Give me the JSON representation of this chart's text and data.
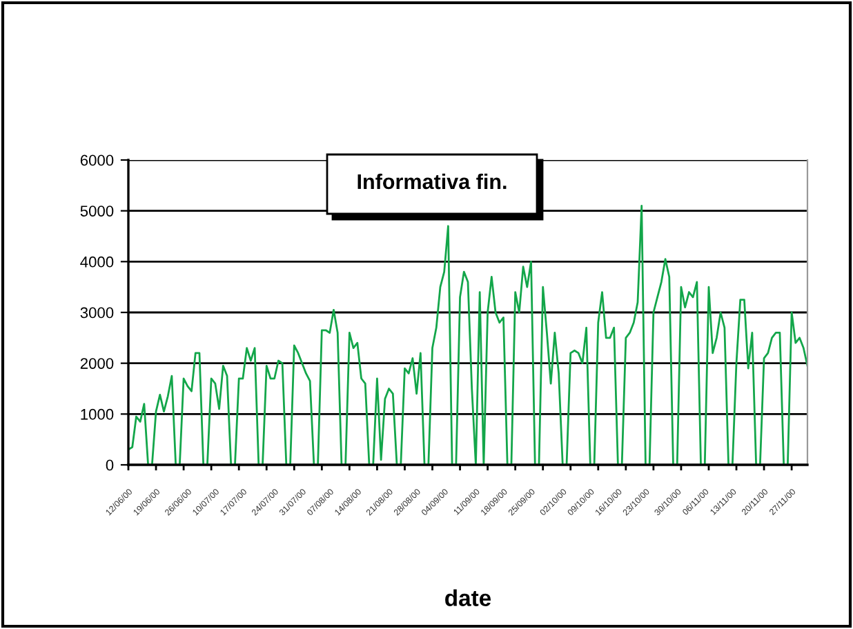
{
  "chart_data": {
    "type": "line",
    "title": "Informativa fin.",
    "xlabel": "date",
    "categories": [
      "12/06/00",
      null,
      null,
      null,
      null,
      null,
      null,
      "19/06/00",
      null,
      null,
      null,
      null,
      null,
      null,
      null,
      "26/06/00",
      null,
      null,
      null,
      null,
      null,
      null,
      "10/07/00",
      null,
      null,
      null,
      null,
      null,
      null,
      "17/07/00",
      null,
      null,
      null,
      null,
      null,
      null,
      null,
      "24/07/00",
      null,
      null,
      null,
      null,
      null,
      null,
      "31/07/00",
      null,
      null,
      null,
      null,
      null,
      null,
      "07/08/00",
      null,
      null,
      null,
      null,
      null,
      null,
      "14/08/00",
      null,
      null,
      null,
      null,
      null,
      null,
      null,
      "21/08/00",
      null,
      null,
      null,
      null,
      null,
      null,
      "28/08/00",
      null,
      null,
      null,
      null,
      null,
      null,
      "04/09/00",
      null,
      null,
      null,
      null,
      null,
      null,
      null,
      "11/09/00",
      null,
      null,
      null,
      null,
      null,
      null,
      "18/09/00",
      null,
      null,
      null,
      null,
      null,
      null,
      "25/09/00",
      null,
      null,
      null,
      null,
      null,
      null,
      null,
      "02/10/00",
      null,
      null,
      null,
      null,
      null,
      null,
      "09/10/00",
      null,
      null,
      null,
      null,
      null,
      null,
      "16/10/00",
      null,
      null,
      null,
      null,
      null,
      null,
      "23/10/00",
      null,
      null,
      null,
      null,
      null,
      null,
      null,
      "30/10/00",
      null,
      null,
      null,
      null,
      null,
      null,
      "06/11/00",
      null,
      null,
      null,
      null,
      null,
      null,
      "13/11/00",
      null,
      null,
      null,
      null,
      null,
      null,
      null,
      "20/11/00",
      null,
      null,
      null,
      null,
      null,
      null,
      "27/11/00",
      null,
      null,
      null,
      null
    ],
    "values": [
      300,
      350,
      950,
      850,
      1200,
      0,
      0,
      1050,
      1380,
      1050,
      1350,
      1750,
      0,
      0,
      1700,
      1550,
      1450,
      2200,
      2200,
      0,
      0,
      1700,
      1600,
      1100,
      1950,
      1750,
      0,
      0,
      1700,
      1700,
      2300,
      2050,
      2300,
      0,
      0,
      1950,
      1700,
      1700,
      2050,
      2000,
      0,
      0,
      2350,
      2200,
      2000,
      1800,
      1650,
      0,
      0,
      2650,
      2650,
      2600,
      3050,
      2600,
      0,
      0,
      2600,
      2300,
      2400,
      1700,
      1600,
      0,
      0,
      1700,
      100,
      1300,
      1500,
      1400,
      0,
      0,
      1900,
      1800,
      2100,
      1400,
      2200,
      0,
      0,
      2300,
      2700,
      3500,
      3800,
      4700,
      0,
      0,
      3300,
      3800,
      3600,
      1500,
      0,
      3400,
      0,
      3000,
      3700,
      3000,
      2800,
      2900,
      0,
      0,
      3400,
      3000,
      3900,
      3500,
      4000,
      0,
      0,
      3500,
      2600,
      1600,
      2600,
      1800,
      0,
      0,
      2200,
      2250,
      2200,
      2000,
      2700,
      0,
      0,
      2800,
      3400,
      2500,
      2500,
      2700,
      0,
      0,
      2500,
      2600,
      2800,
      3200,
      5100,
      0,
      0,
      3000,
      3300,
      3600,
      4050,
      3700,
      0,
      0,
      3500,
      3100,
      3400,
      3300,
      3600,
      0,
      0,
      3500,
      2200,
      2500,
      3000,
      2700,
      0,
      0,
      2000,
      3250,
      3250,
      1900,
      2600,
      0,
      0,
      2100,
      2200,
      2500,
      2600,
      2600,
      0,
      0,
      3000,
      2400,
      2500,
      2300,
      1950
    ],
    "color": "#13a64a",
    "ylim": [
      0,
      6000
    ],
    "yticks": [
      0,
      1000,
      2000,
      3000,
      4000,
      5000,
      6000
    ],
    "grid": "y",
    "legend": false
  }
}
